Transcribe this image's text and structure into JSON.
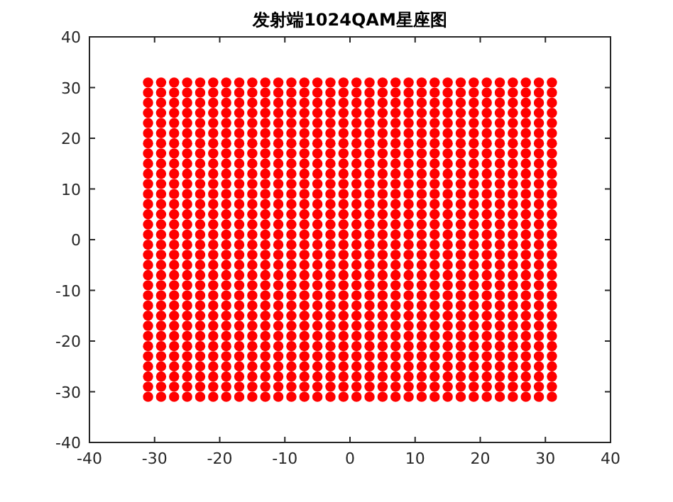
{
  "chart_data": {
    "type": "scatter",
    "title": "发射端1024QAM星座图",
    "xlim": [
      -40,
      40
    ],
    "ylim": [
      -40,
      40
    ],
    "xticks": [
      -40,
      -30,
      -20,
      -10,
      0,
      10,
      20,
      30,
      40
    ],
    "yticks": [
      -40,
      -30,
      -20,
      -10,
      0,
      10,
      20,
      30,
      40
    ],
    "marker": "circle",
    "grid": false,
    "series": [
      {
        "color": "#ff0000",
        "x": [
          -31,
          -31,
          -31,
          -31,
          -31,
          -31,
          -31,
          -31,
          -31,
          -31,
          -31,
          -31,
          -31,
          -31,
          -31,
          -31,
          -31,
          -31,
          -31,
          -31,
          -31,
          -31,
          -31,
          -31,
          -31,
          -31,
          -31,
          -31,
          -31,
          -31,
          -31,
          -31
        ],
        "values": [
          -31,
          -29,
          -27,
          -25,
          -23,
          -21,
          -19,
          -17,
          -15,
          -13,
          -11,
          -9,
          -7,
          -5,
          -3,
          -1,
          1,
          3,
          5,
          7,
          9,
          11,
          13,
          15,
          17,
          19,
          21,
          23,
          25,
          27,
          29,
          31
        ]
      },
      {
        "color": "#ff0000",
        "x": [
          -29,
          -29,
          -29,
          -29,
          -29,
          -29,
          -29,
          -29,
          -29,
          -29,
          -29,
          -29,
          -29,
          -29,
          -29,
          -29,
          -29,
          -29,
          -29,
          -29,
          -29,
          -29,
          -29,
          -29,
          -29,
          -29,
          -29,
          -29,
          -29,
          -29,
          -29,
          -29
        ],
        "values": [
          -31,
          -29,
          -27,
          -25,
          -23,
          -21,
          -19,
          -17,
          -15,
          -13,
          -11,
          -9,
          -7,
          -5,
          -3,
          -1,
          1,
          3,
          5,
          7,
          9,
          11,
          13,
          15,
          17,
          19,
          21,
          23,
          25,
          27,
          29,
          31
        ]
      },
      {
        "color": "#ff0000",
        "x": [
          -27,
          -27,
          -27,
          -27,
          -27,
          -27,
          -27,
          -27,
          -27,
          -27,
          -27,
          -27,
          -27,
          -27,
          -27,
          -27,
          -27,
          -27,
          -27,
          -27,
          -27,
          -27,
          -27,
          -27,
          -27,
          -27,
          -27,
          -27,
          -27,
          -27,
          -27,
          -27
        ],
        "values": [
          -31,
          -29,
          -27,
          -25,
          -23,
          -21,
          -19,
          -17,
          -15,
          -13,
          -11,
          -9,
          -7,
          -5,
          -3,
          -1,
          1,
          3,
          5,
          7,
          9,
          11,
          13,
          15,
          17,
          19,
          21,
          23,
          25,
          27,
          29,
          31
        ]
      },
      {
        "color": "#ff0000",
        "x": [
          -25,
          -25,
          -25,
          -25,
          -25,
          -25,
          -25,
          -25,
          -25,
          -25,
          -25,
          -25,
          -25,
          -25,
          -25,
          -25,
          -25,
          -25,
          -25,
          -25,
          -25,
          -25,
          -25,
          -25,
          -25,
          -25,
          -25,
          -25,
          -25,
          -25,
          -25,
          -25
        ],
        "values": [
          -31,
          -29,
          -27,
          -25,
          -23,
          -21,
          -19,
          -17,
          -15,
          -13,
          -11,
          -9,
          -7,
          -5,
          -3,
          -1,
          1,
          3,
          5,
          7,
          9,
          11,
          13,
          15,
          17,
          19,
          21,
          23,
          25,
          27,
          29,
          31
        ]
      },
      {
        "color": "#ff0000",
        "x": [
          -23,
          -23,
          -23,
          -23,
          -23,
          -23,
          -23,
          -23,
          -23,
          -23,
          -23,
          -23,
          -23,
          -23,
          -23,
          -23,
          -23,
          -23,
          -23,
          -23,
          -23,
          -23,
          -23,
          -23,
          -23,
          -23,
          -23,
          -23,
          -23,
          -23,
          -23,
          -23
        ],
        "values": [
          -31,
          -29,
          -27,
          -25,
          -23,
          -21,
          -19,
          -17,
          -15,
          -13,
          -11,
          -9,
          -7,
          -5,
          -3,
          -1,
          1,
          3,
          5,
          7,
          9,
          11,
          13,
          15,
          17,
          19,
          21,
          23,
          25,
          27,
          29,
          31
        ]
      },
      {
        "color": "#ff0000",
        "x": [
          -21,
          -21,
          -21,
          -21,
          -21,
          -21,
          -21,
          -21,
          -21,
          -21,
          -21,
          -21,
          -21,
          -21,
          -21,
          -21,
          -21,
          -21,
          -21,
          -21,
          -21,
          -21,
          -21,
          -21,
          -21,
          -21,
          -21,
          -21,
          -21,
          -21,
          -21,
          -21
        ],
        "values": [
          -31,
          -29,
          -27,
          -25,
          -23,
          -21,
          -19,
          -17,
          -15,
          -13,
          -11,
          -9,
          -7,
          -5,
          -3,
          -1,
          1,
          3,
          5,
          7,
          9,
          11,
          13,
          15,
          17,
          19,
          21,
          23,
          25,
          27,
          29,
          31
        ]
      },
      {
        "color": "#ff0000",
        "x": [
          -19,
          -19,
          -19,
          -19,
          -19,
          -19,
          -19,
          -19,
          -19,
          -19,
          -19,
          -19,
          -19,
          -19,
          -19,
          -19,
          -19,
          -19,
          -19,
          -19,
          -19,
          -19,
          -19,
          -19,
          -19,
          -19,
          -19,
          -19,
          -19,
          -19,
          -19,
          -19
        ],
        "values": [
          -31,
          -29,
          -27,
          -25,
          -23,
          -21,
          -19,
          -17,
          -15,
          -13,
          -11,
          -9,
          -7,
          -5,
          -3,
          -1,
          1,
          3,
          5,
          7,
          9,
          11,
          13,
          15,
          17,
          19,
          21,
          23,
          25,
          27,
          29,
          31
        ]
      },
      {
        "color": "#ff0000",
        "x": [
          -17,
          -17,
          -17,
          -17,
          -17,
          -17,
          -17,
          -17,
          -17,
          -17,
          -17,
          -17,
          -17,
          -17,
          -17,
          -17,
          -17,
          -17,
          -17,
          -17,
          -17,
          -17,
          -17,
          -17,
          -17,
          -17,
          -17,
          -17,
          -17,
          -17,
          -17,
          -17
        ],
        "values": [
          -31,
          -29,
          -27,
          -25,
          -23,
          -21,
          -19,
          -17,
          -15,
          -13,
          -11,
          -9,
          -7,
          -5,
          -3,
          -1,
          1,
          3,
          5,
          7,
          9,
          11,
          13,
          15,
          17,
          19,
          21,
          23,
          25,
          27,
          29,
          31
        ]
      },
      {
        "color": "#ff0000",
        "x": [
          -15,
          -15,
          -15,
          -15,
          -15,
          -15,
          -15,
          -15,
          -15,
          -15,
          -15,
          -15,
          -15,
          -15,
          -15,
          -15,
          -15,
          -15,
          -15,
          -15,
          -15,
          -15,
          -15,
          -15,
          -15,
          -15,
          -15,
          -15,
          -15,
          -15,
          -15,
          -15
        ],
        "values": [
          -31,
          -29,
          -27,
          -25,
          -23,
          -21,
          -19,
          -17,
          -15,
          -13,
          -11,
          -9,
          -7,
          -5,
          -3,
          -1,
          1,
          3,
          5,
          7,
          9,
          11,
          13,
          15,
          17,
          19,
          21,
          23,
          25,
          27,
          29,
          31
        ]
      },
      {
        "color": "#ff0000",
        "x": [
          -13,
          -13,
          -13,
          -13,
          -13,
          -13,
          -13,
          -13,
          -13,
          -13,
          -13,
          -13,
          -13,
          -13,
          -13,
          -13,
          -13,
          -13,
          -13,
          -13,
          -13,
          -13,
          -13,
          -13,
          -13,
          -13,
          -13,
          -13,
          -13,
          -13,
          -13,
          -13
        ],
        "values": [
          -31,
          -29,
          -27,
          -25,
          -23,
          -21,
          -19,
          -17,
          -15,
          -13,
          -11,
          -9,
          -7,
          -5,
          -3,
          -1,
          1,
          3,
          5,
          7,
          9,
          11,
          13,
          15,
          17,
          19,
          21,
          23,
          25,
          27,
          29,
          31
        ]
      },
      {
        "color": "#ff0000",
        "x": [
          -11,
          -11,
          -11,
          -11,
          -11,
          -11,
          -11,
          -11,
          -11,
          -11,
          -11,
          -11,
          -11,
          -11,
          -11,
          -11,
          -11,
          -11,
          -11,
          -11,
          -11,
          -11,
          -11,
          -11,
          -11,
          -11,
          -11,
          -11,
          -11,
          -11,
          -11,
          -11
        ],
        "values": [
          -31,
          -29,
          -27,
          -25,
          -23,
          -21,
          -19,
          -17,
          -15,
          -13,
          -11,
          -9,
          -7,
          -5,
          -3,
          -1,
          1,
          3,
          5,
          7,
          9,
          11,
          13,
          15,
          17,
          19,
          21,
          23,
          25,
          27,
          29,
          31
        ]
      },
      {
        "color": "#ff0000",
        "x": [
          -9,
          -9,
          -9,
          -9,
          -9,
          -9,
          -9,
          -9,
          -9,
          -9,
          -9,
          -9,
          -9,
          -9,
          -9,
          -9,
          -9,
          -9,
          -9,
          -9,
          -9,
          -9,
          -9,
          -9,
          -9,
          -9,
          -9,
          -9,
          -9,
          -9,
          -9,
          -9
        ],
        "values": [
          -31,
          -29,
          -27,
          -25,
          -23,
          -21,
          -19,
          -17,
          -15,
          -13,
          -11,
          -9,
          -7,
          -5,
          -3,
          -1,
          1,
          3,
          5,
          7,
          9,
          11,
          13,
          15,
          17,
          19,
          21,
          23,
          25,
          27,
          29,
          31
        ]
      },
      {
        "color": "#ff0000",
        "x": [
          -7,
          -7,
          -7,
          -7,
          -7,
          -7,
          -7,
          -7,
          -7,
          -7,
          -7,
          -7,
          -7,
          -7,
          -7,
          -7,
          -7,
          -7,
          -7,
          -7,
          -7,
          -7,
          -7,
          -7,
          -7,
          -7,
          -7,
          -7,
          -7,
          -7,
          -7,
          -7
        ],
        "values": [
          -31,
          -29,
          -27,
          -25,
          -23,
          -21,
          -19,
          -17,
          -15,
          -13,
          -11,
          -9,
          -7,
          -5,
          -3,
          -1,
          1,
          3,
          5,
          7,
          9,
          11,
          13,
          15,
          17,
          19,
          21,
          23,
          25,
          27,
          29,
          31
        ]
      },
      {
        "color": "#ff0000",
        "x": [
          -5,
          -5,
          -5,
          -5,
          -5,
          -5,
          -5,
          -5,
          -5,
          -5,
          -5,
          -5,
          -5,
          -5,
          -5,
          -5,
          -5,
          -5,
          -5,
          -5,
          -5,
          -5,
          -5,
          -5,
          -5,
          -5,
          -5,
          -5,
          -5,
          -5,
          -5,
          -5
        ],
        "values": [
          -31,
          -29,
          -27,
          -25,
          -23,
          -21,
          -19,
          -17,
          -15,
          -13,
          -11,
          -9,
          -7,
          -5,
          -3,
          -1,
          1,
          3,
          5,
          7,
          9,
          11,
          13,
          15,
          17,
          19,
          21,
          23,
          25,
          27,
          29,
          31
        ]
      },
      {
        "color": "#ff0000",
        "x": [
          -3,
          -3,
          -3,
          -3,
          -3,
          -3,
          -3,
          -3,
          -3,
          -3,
          -3,
          -3,
          -3,
          -3,
          -3,
          -3,
          -3,
          -3,
          -3,
          -3,
          -3,
          -3,
          -3,
          -3,
          -3,
          -3,
          -3,
          -3,
          -3,
          -3,
          -3,
          -3
        ],
        "values": [
          -31,
          -29,
          -27,
          -25,
          -23,
          -21,
          -19,
          -17,
          -15,
          -13,
          -11,
          -9,
          -7,
          -5,
          -3,
          -1,
          1,
          3,
          5,
          7,
          9,
          11,
          13,
          15,
          17,
          19,
          21,
          23,
          25,
          27,
          29,
          31
        ]
      },
      {
        "color": "#ff0000",
        "x": [
          -1,
          -1,
          -1,
          -1,
          -1,
          -1,
          -1,
          -1,
          -1,
          -1,
          -1,
          -1,
          -1,
          -1,
          -1,
          -1,
          -1,
          -1,
          -1,
          -1,
          -1,
          -1,
          -1,
          -1,
          -1,
          -1,
          -1,
          -1,
          -1,
          -1,
          -1,
          -1
        ],
        "values": [
          -31,
          -29,
          -27,
          -25,
          -23,
          -21,
          -19,
          -17,
          -15,
          -13,
          -11,
          -9,
          -7,
          -5,
          -3,
          -1,
          1,
          3,
          5,
          7,
          9,
          11,
          13,
          15,
          17,
          19,
          21,
          23,
          25,
          27,
          29,
          31
        ]
      },
      {
        "color": "#ff0000",
        "x": [
          1,
          1,
          1,
          1,
          1,
          1,
          1,
          1,
          1,
          1,
          1,
          1,
          1,
          1,
          1,
          1,
          1,
          1,
          1,
          1,
          1,
          1,
          1,
          1,
          1,
          1,
          1,
          1,
          1,
          1,
          1,
          1
        ],
        "values": [
          -31,
          -29,
          -27,
          -25,
          -23,
          -21,
          -19,
          -17,
          -15,
          -13,
          -11,
          -9,
          -7,
          -5,
          -3,
          -1,
          1,
          3,
          5,
          7,
          9,
          11,
          13,
          15,
          17,
          19,
          21,
          23,
          25,
          27,
          29,
          31
        ]
      },
      {
        "color": "#ff0000",
        "x": [
          3,
          3,
          3,
          3,
          3,
          3,
          3,
          3,
          3,
          3,
          3,
          3,
          3,
          3,
          3,
          3,
          3,
          3,
          3,
          3,
          3,
          3,
          3,
          3,
          3,
          3,
          3,
          3,
          3,
          3,
          3,
          3
        ],
        "values": [
          -31,
          -29,
          -27,
          -25,
          -23,
          -21,
          -19,
          -17,
          -15,
          -13,
          -11,
          -9,
          -7,
          -5,
          -3,
          -1,
          1,
          3,
          5,
          7,
          9,
          11,
          13,
          15,
          17,
          19,
          21,
          23,
          25,
          27,
          29,
          31
        ]
      },
      {
        "color": "#ff0000",
        "x": [
          5,
          5,
          5,
          5,
          5,
          5,
          5,
          5,
          5,
          5,
          5,
          5,
          5,
          5,
          5,
          5,
          5,
          5,
          5,
          5,
          5,
          5,
          5,
          5,
          5,
          5,
          5,
          5,
          5,
          5,
          5,
          5
        ],
        "values": [
          -31,
          -29,
          -27,
          -25,
          -23,
          -21,
          -19,
          -17,
          -15,
          -13,
          -11,
          -9,
          -7,
          -5,
          -3,
          -1,
          1,
          3,
          5,
          7,
          9,
          11,
          13,
          15,
          17,
          19,
          21,
          23,
          25,
          27,
          29,
          31
        ]
      },
      {
        "color": "#ff0000",
        "x": [
          7,
          7,
          7,
          7,
          7,
          7,
          7,
          7,
          7,
          7,
          7,
          7,
          7,
          7,
          7,
          7,
          7,
          7,
          7,
          7,
          7,
          7,
          7,
          7,
          7,
          7,
          7,
          7,
          7,
          7,
          7,
          7
        ],
        "values": [
          -31,
          -29,
          -27,
          -25,
          -23,
          -21,
          -19,
          -17,
          -15,
          -13,
          -11,
          -9,
          -7,
          -5,
          -3,
          -1,
          1,
          3,
          5,
          7,
          9,
          11,
          13,
          15,
          17,
          19,
          21,
          23,
          25,
          27,
          29,
          31
        ]
      },
      {
        "color": "#ff0000",
        "x": [
          9,
          9,
          9,
          9,
          9,
          9,
          9,
          9,
          9,
          9,
          9,
          9,
          9,
          9,
          9,
          9,
          9,
          9,
          9,
          9,
          9,
          9,
          9,
          9,
          9,
          9,
          9,
          9,
          9,
          9,
          9,
          9
        ],
        "values": [
          -31,
          -29,
          -27,
          -25,
          -23,
          -21,
          -19,
          -17,
          -15,
          -13,
          -11,
          -9,
          -7,
          -5,
          -3,
          -1,
          1,
          3,
          5,
          7,
          9,
          11,
          13,
          15,
          17,
          19,
          21,
          23,
          25,
          27,
          29,
          31
        ]
      },
      {
        "color": "#ff0000",
        "x": [
          11,
          11,
          11,
          11,
          11,
          11,
          11,
          11,
          11,
          11,
          11,
          11,
          11,
          11,
          11,
          11,
          11,
          11,
          11,
          11,
          11,
          11,
          11,
          11,
          11,
          11,
          11,
          11,
          11,
          11,
          11,
          11
        ],
        "values": [
          -31,
          -29,
          -27,
          -25,
          -23,
          -21,
          -19,
          -17,
          -15,
          -13,
          -11,
          -9,
          -7,
          -5,
          -3,
          -1,
          1,
          3,
          5,
          7,
          9,
          11,
          13,
          15,
          17,
          19,
          21,
          23,
          25,
          27,
          29,
          31
        ]
      },
      {
        "color": "#ff0000",
        "x": [
          13,
          13,
          13,
          13,
          13,
          13,
          13,
          13,
          13,
          13,
          13,
          13,
          13,
          13,
          13,
          13,
          13,
          13,
          13,
          13,
          13,
          13,
          13,
          13,
          13,
          13,
          13,
          13,
          13,
          13,
          13,
          13
        ],
        "values": [
          -31,
          -29,
          -27,
          -25,
          -23,
          -21,
          -19,
          -17,
          -15,
          -13,
          -11,
          -9,
          -7,
          -5,
          -3,
          -1,
          1,
          3,
          5,
          7,
          9,
          11,
          13,
          15,
          17,
          19,
          21,
          23,
          25,
          27,
          29,
          31
        ]
      },
      {
        "color": "#ff0000",
        "x": [
          15,
          15,
          15,
          15,
          15,
          15,
          15,
          15,
          15,
          15,
          15,
          15,
          15,
          15,
          15,
          15,
          15,
          15,
          15,
          15,
          15,
          15,
          15,
          15,
          15,
          15,
          15,
          15,
          15,
          15,
          15,
          15
        ],
        "values": [
          -31,
          -29,
          -27,
          -25,
          -23,
          -21,
          -19,
          -17,
          -15,
          -13,
          -11,
          -9,
          -7,
          -5,
          -3,
          -1,
          1,
          3,
          5,
          7,
          9,
          11,
          13,
          15,
          17,
          19,
          21,
          23,
          25,
          27,
          29,
          31
        ]
      },
      {
        "color": "#ff0000",
        "x": [
          17,
          17,
          17,
          17,
          17,
          17,
          17,
          17,
          17,
          17,
          17,
          17,
          17,
          17,
          17,
          17,
          17,
          17,
          17,
          17,
          17,
          17,
          17,
          17,
          17,
          17,
          17,
          17,
          17,
          17,
          17,
          17
        ],
        "values": [
          -31,
          -29,
          -27,
          -25,
          -23,
          -21,
          -19,
          -17,
          -15,
          -13,
          -11,
          -9,
          -7,
          -5,
          -3,
          -1,
          1,
          3,
          5,
          7,
          9,
          11,
          13,
          15,
          17,
          19,
          21,
          23,
          25,
          27,
          29,
          31
        ]
      },
      {
        "color": "#ff0000",
        "x": [
          19,
          19,
          19,
          19,
          19,
          19,
          19,
          19,
          19,
          19,
          19,
          19,
          19,
          19,
          19,
          19,
          19,
          19,
          19,
          19,
          19,
          19,
          19,
          19,
          19,
          19,
          19,
          19,
          19,
          19,
          19,
          19
        ],
        "values": [
          -31,
          -29,
          -27,
          -25,
          -23,
          -21,
          -19,
          -17,
          -15,
          -13,
          -11,
          -9,
          -7,
          -5,
          -3,
          -1,
          1,
          3,
          5,
          7,
          9,
          11,
          13,
          15,
          17,
          19,
          21,
          23,
          25,
          27,
          29,
          31
        ]
      },
      {
        "color": "#ff0000",
        "x": [
          21,
          21,
          21,
          21,
          21,
          21,
          21,
          21,
          21,
          21,
          21,
          21,
          21,
          21,
          21,
          21,
          21,
          21,
          21,
          21,
          21,
          21,
          21,
          21,
          21,
          21,
          21,
          21,
          21,
          21,
          21,
          21
        ],
        "values": [
          -31,
          -29,
          -27,
          -25,
          -23,
          -21,
          -19,
          -17,
          -15,
          -13,
          -11,
          -9,
          -7,
          -5,
          -3,
          -1,
          1,
          3,
          5,
          7,
          9,
          11,
          13,
          15,
          17,
          19,
          21,
          23,
          25,
          27,
          29,
          31
        ]
      },
      {
        "color": "#ff0000",
        "x": [
          23,
          23,
          23,
          23,
          23,
          23,
          23,
          23,
          23,
          23,
          23,
          23,
          23,
          23,
          23,
          23,
          23,
          23,
          23,
          23,
          23,
          23,
          23,
          23,
          23,
          23,
          23,
          23,
          23,
          23,
          23,
          23
        ],
        "values": [
          -31,
          -29,
          -27,
          -25,
          -23,
          -21,
          -19,
          -17,
          -15,
          -13,
          -11,
          -9,
          -7,
          -5,
          -3,
          -1,
          1,
          3,
          5,
          7,
          9,
          11,
          13,
          15,
          17,
          19,
          21,
          23,
          25,
          27,
          29,
          31
        ]
      },
      {
        "color": "#ff0000",
        "x": [
          25,
          25,
          25,
          25,
          25,
          25,
          25,
          25,
          25,
          25,
          25,
          25,
          25,
          25,
          25,
          25,
          25,
          25,
          25,
          25,
          25,
          25,
          25,
          25,
          25,
          25,
          25,
          25,
          25,
          25,
          25,
          25
        ],
        "values": [
          -31,
          -29,
          -27,
          -25,
          -23,
          -21,
          -19,
          -17,
          -15,
          -13,
          -11,
          -9,
          -7,
          -5,
          -3,
          -1,
          1,
          3,
          5,
          7,
          9,
          11,
          13,
          15,
          17,
          19,
          21,
          23,
          25,
          27,
          29,
          31
        ]
      },
      {
        "color": "#ff0000",
        "x": [
          27,
          27,
          27,
          27,
          27,
          27,
          27,
          27,
          27,
          27,
          27,
          27,
          27,
          27,
          27,
          27,
          27,
          27,
          27,
          27,
          27,
          27,
          27,
          27,
          27,
          27,
          27,
          27,
          27,
          27,
          27,
          27
        ],
        "values": [
          -31,
          -29,
          -27,
          -25,
          -23,
          -21,
          -19,
          -17,
          -15,
          -13,
          -11,
          -9,
          -7,
          -5,
          -3,
          -1,
          1,
          3,
          5,
          7,
          9,
          11,
          13,
          15,
          17,
          19,
          21,
          23,
          25,
          27,
          29,
          31
        ]
      },
      {
        "color": "#ff0000",
        "x": [
          29,
          29,
          29,
          29,
          29,
          29,
          29,
          29,
          29,
          29,
          29,
          29,
          29,
          29,
          29,
          29,
          29,
          29,
          29,
          29,
          29,
          29,
          29,
          29,
          29,
          29,
          29,
          29,
          29,
          29,
          29,
          29
        ],
        "values": [
          -31,
          -29,
          -27,
          -25,
          -23,
          -21,
          -19,
          -17,
          -15,
          -13,
          -11,
          -9,
          -7,
          -5,
          -3,
          -1,
          1,
          3,
          5,
          7,
          9,
          11,
          13,
          15,
          17,
          19,
          21,
          23,
          25,
          27,
          29,
          31
        ]
      },
      {
        "color": "#ff0000",
        "x": [
          31,
          31,
          31,
          31,
          31,
          31,
          31,
          31,
          31,
          31,
          31,
          31,
          31,
          31,
          31,
          31,
          31,
          31,
          31,
          31,
          31,
          31,
          31,
          31,
          31,
          31,
          31,
          31,
          31,
          31,
          31,
          31
        ],
        "values": [
          -31,
          -29,
          -27,
          -25,
          -23,
          -21,
          -19,
          -17,
          -15,
          -13,
          -11,
          -9,
          -7,
          -5,
          -3,
          -1,
          1,
          3,
          5,
          7,
          9,
          11,
          13,
          15,
          17,
          19,
          21,
          23,
          25,
          27,
          29,
          31
        ]
      }
    ]
  }
}
